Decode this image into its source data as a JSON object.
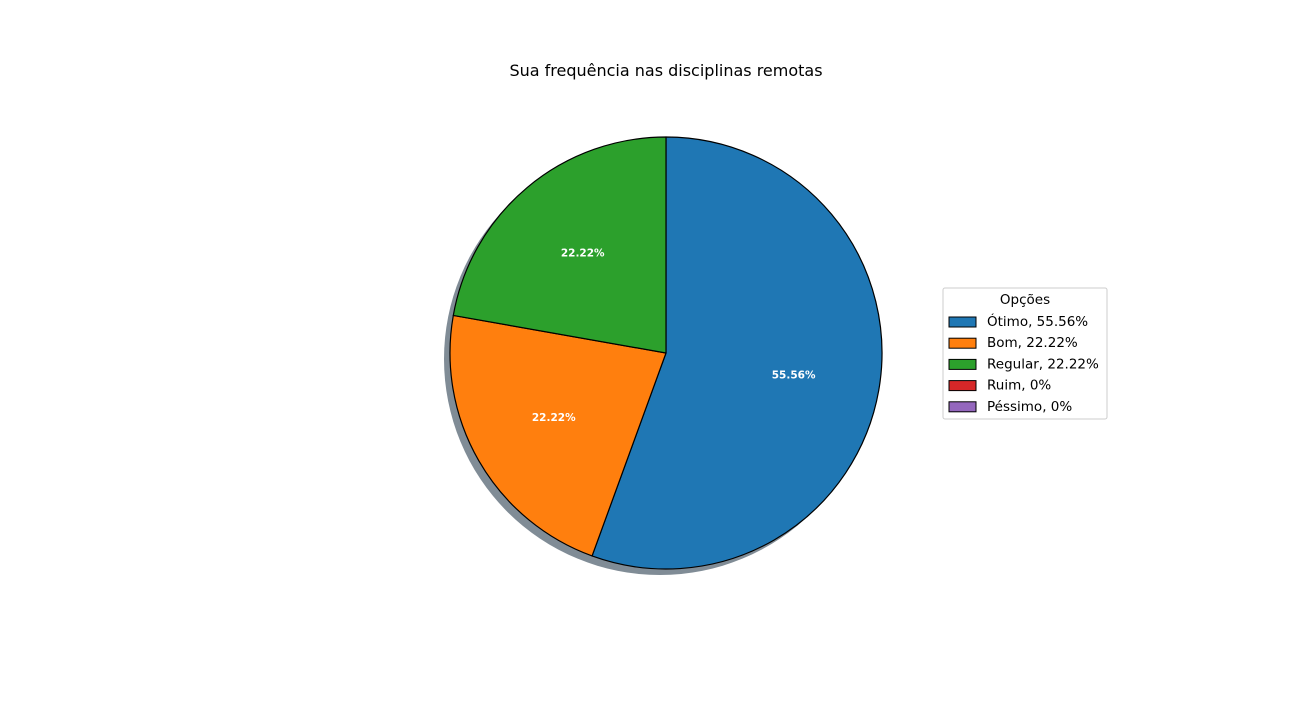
{
  "chart_data": {
    "type": "pie",
    "title": "Sua frequência nas disciplinas remotas",
    "start_angle_deg": 90,
    "direction": "clockwise",
    "shadow": true,
    "edgecolor": "#000000",
    "label_color": "#ffffff",
    "legend_placement": "right",
    "legend": {
      "title": "Opções",
      "entries": [
        "Ótimo, 55.56%",
        "Bom, 22.22%",
        "Regular, 22.22%",
        "Ruim, 0%",
        "Péssimo, 0%"
      ]
    },
    "slices": [
      {
        "name": "Ótimo",
        "value": 55.56,
        "label": "55.56%",
        "color": "#1f77b4"
      },
      {
        "name": "Bom",
        "value": 22.22,
        "label": "22.22%",
        "color": "#ff7f0e"
      },
      {
        "name": "Regular",
        "value": 22.22,
        "label": "22.22%",
        "color": "#2ca02c"
      },
      {
        "name": "Ruim",
        "value": 0,
        "label": "",
        "color": "#d62728"
      },
      {
        "name": "Péssimo",
        "value": 0,
        "label": "",
        "color": "#9467bd"
      }
    ]
  }
}
